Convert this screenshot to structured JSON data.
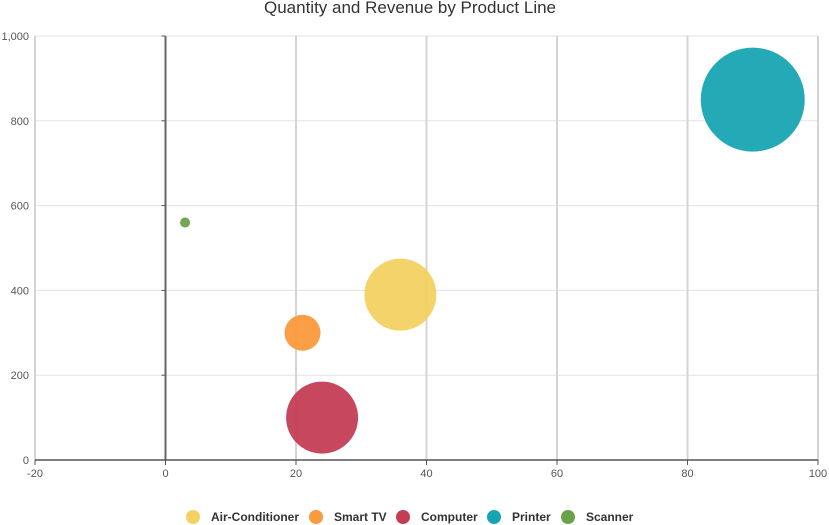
{
  "chart_data": {
    "type": "bubble",
    "title": "Quantity and Revenue by Product Line",
    "xlabel": "",
    "ylabel": "",
    "xlim": [
      -20,
      100
    ],
    "ylim": [
      0,
      1000
    ],
    "x_ticks": [
      "-20",
      "0",
      "20",
      "40",
      "60",
      "80",
      "100"
    ],
    "x_tick_values": [
      -20,
      0,
      20,
      40,
      60,
      80,
      100
    ],
    "y_ticks": [
      "0",
      "200",
      "400",
      "600",
      "800",
      "1,000"
    ],
    "y_tick_values": [
      0,
      200,
      400,
      600,
      800,
      1000
    ],
    "grid": true,
    "legend_position": "bottom",
    "series": [
      {
        "name": "Air-Conditioner",
        "color": "#f3d262",
        "x": 36,
        "y": 390,
        "size": 36
      },
      {
        "name": "Smart TV",
        "color": "#fb9a3d",
        "x": 21,
        "y": 300,
        "size": 18
      },
      {
        "name": "Computer",
        "color": "#c33d55",
        "x": 24,
        "y": 100,
        "size": 36
      },
      {
        "name": "Printer",
        "color": "#18a5b2",
        "x": 90,
        "y": 850,
        "size": 52
      },
      {
        "name": "Scanner",
        "color": "#6aa14a",
        "x": 3,
        "y": 560,
        "size": 5
      }
    ]
  }
}
